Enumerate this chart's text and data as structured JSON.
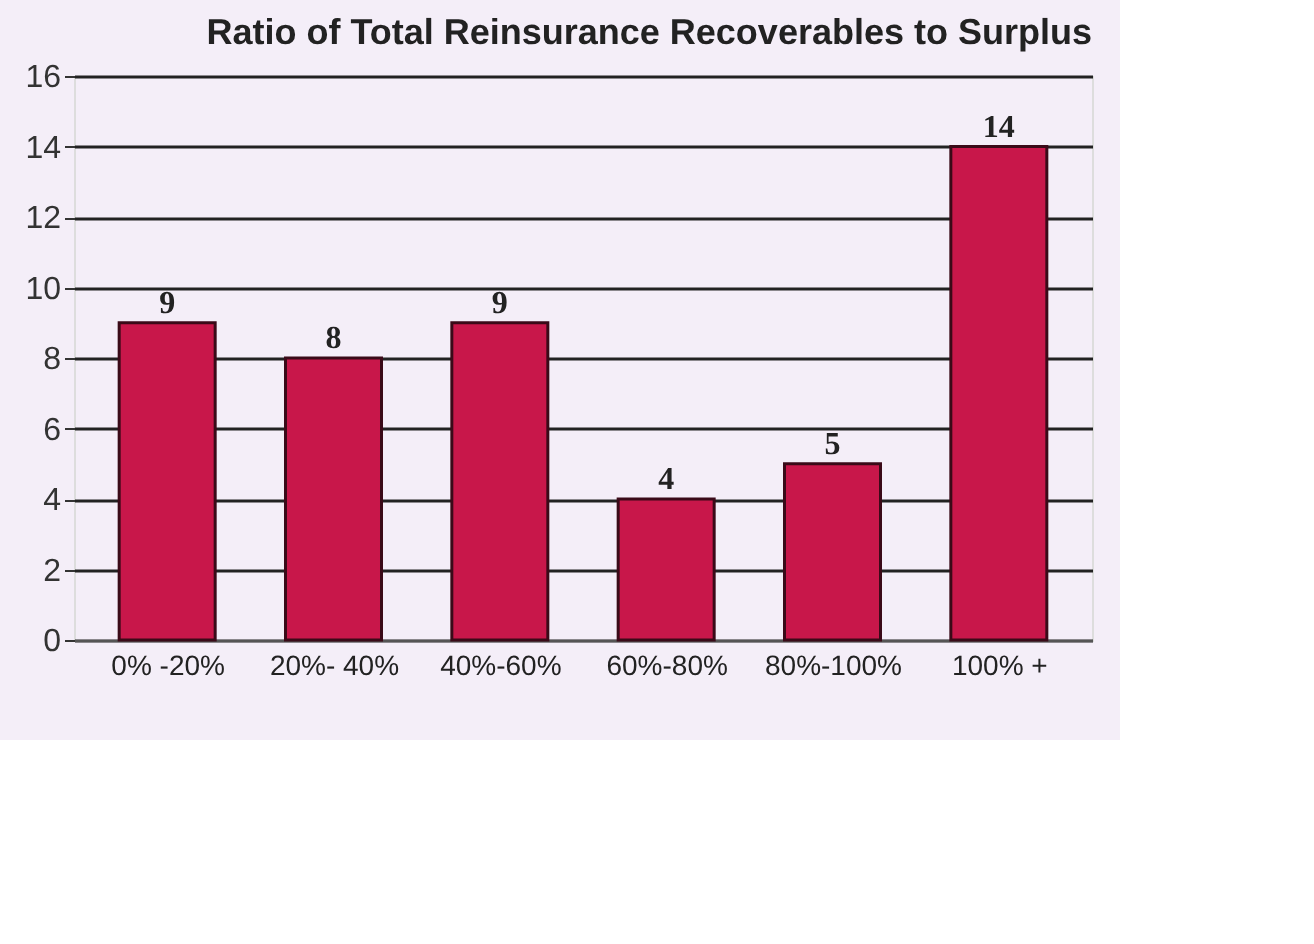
{
  "chart_data": {
    "type": "bar",
    "title": "Ratio of Total Reinsurance Recoverables to Surplus",
    "categories": [
      "0% -20%",
      "20%- 40%",
      "40%-60%",
      "60%-80%",
      "80%-100%",
      "100% +"
    ],
    "values": [
      9,
      8,
      9,
      4,
      5,
      14
    ],
    "color": "#c8174a",
    "ylim": [
      0,
      16
    ],
    "yticks": [
      0,
      2,
      4,
      6,
      8,
      10,
      12,
      14,
      16
    ],
    "grid": "y",
    "data_labels": true
  }
}
